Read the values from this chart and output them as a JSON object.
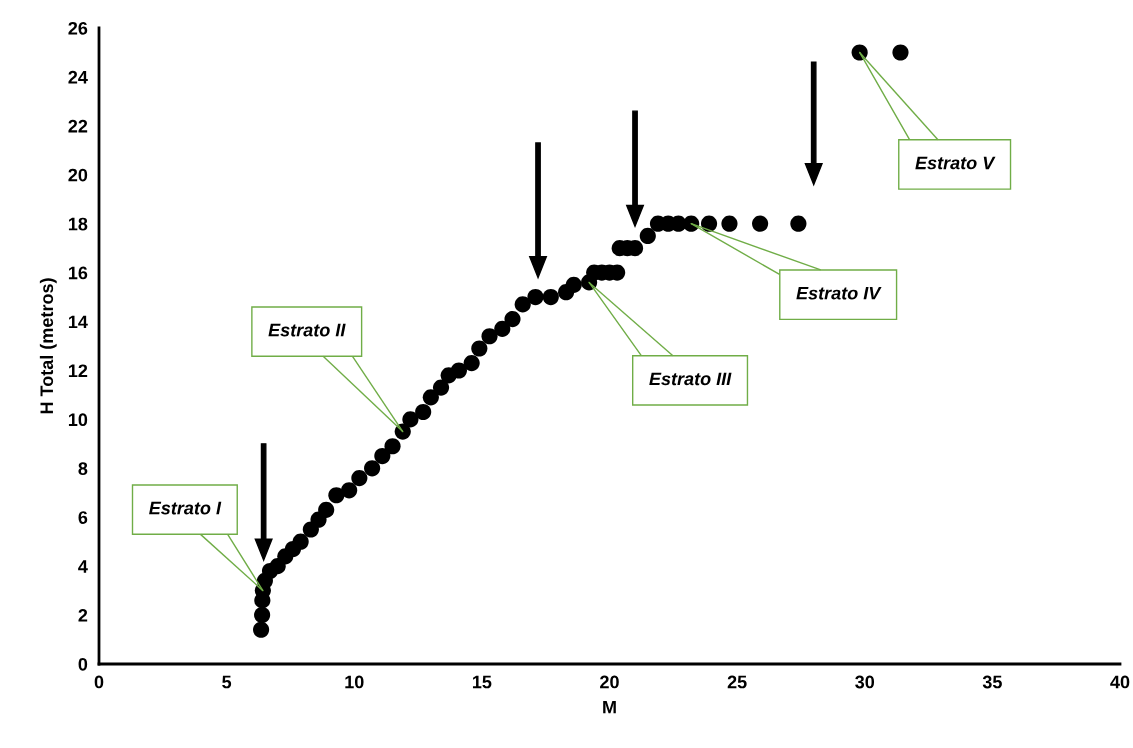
{
  "chart_data": {
    "type": "scatter",
    "xlabel": "M",
    "ylabel": "H Total (metros)",
    "x": [
      6.35,
      6.39,
      6.4,
      6.42,
      6.5,
      6.7,
      7.0,
      7.3,
      7.6,
      7.9,
      8.3,
      8.6,
      8.9,
      9.3,
      9.8,
      10.2,
      10.7,
      11.1,
      11.5,
      11.9,
      12.2,
      12.7,
      13.0,
      13.4,
      13.7,
      14.1,
      14.6,
      14.9,
      15.3,
      15.8,
      16.2,
      16.6,
      17.1,
      17.7,
      18.3,
      18.6,
      19.2,
      19.4,
      19.7,
      20.0,
      20.3,
      20.4,
      20.7,
      21.0,
      21.5,
      21.9,
      22.3,
      22.7,
      23.2,
      23.9,
      24.7,
      25.9,
      27.4,
      29.8,
      31.4
    ],
    "values": [
      1.4,
      2.0,
      2.6,
      3.0,
      3.4,
      3.8,
      4.0,
      4.4,
      4.7,
      5.0,
      5.5,
      5.9,
      6.3,
      6.9,
      7.1,
      7.6,
      8.0,
      8.5,
      8.9,
      9.5,
      10.0,
      10.3,
      10.9,
      11.3,
      11.8,
      12.0,
      12.3,
      12.9,
      13.4,
      13.7,
      14.1,
      14.7,
      15.0,
      15.0,
      15.2,
      15.5,
      15.6,
      16,
      16,
      16,
      16,
      17,
      17,
      17,
      17.5,
      18,
      18,
      18,
      18,
      18,
      18,
      18,
      18,
      25,
      25
    ],
    "color": "#000000",
    "marker": "circle",
    "xlim": [
      0,
      40
    ],
    "xticks": [
      0,
      5,
      10,
      15,
      20,
      25,
      30,
      35,
      40
    ],
    "ylim": [
      0,
      26
    ],
    "yticks": [
      0,
      2,
      4,
      6,
      8,
      10,
      12,
      14,
      16,
      18,
      20,
      22,
      24,
      26
    ],
    "grid": false,
    "legend": false,
    "annotations": [
      {
        "text": "Estrato I",
        "x": 6.42,
        "y": 3.0
      },
      {
        "text": "Estrato II",
        "x": 11.9,
        "y": 9.5
      },
      {
        "text": "Estrato III",
        "x": 19.2,
        "y": 15.6
      },
      {
        "text": "Estrato IV",
        "x": 23.2,
        "y": 18
      },
      {
        "text": "Estrato V",
        "x": 29.8,
        "y": 25
      }
    ]
  }
}
